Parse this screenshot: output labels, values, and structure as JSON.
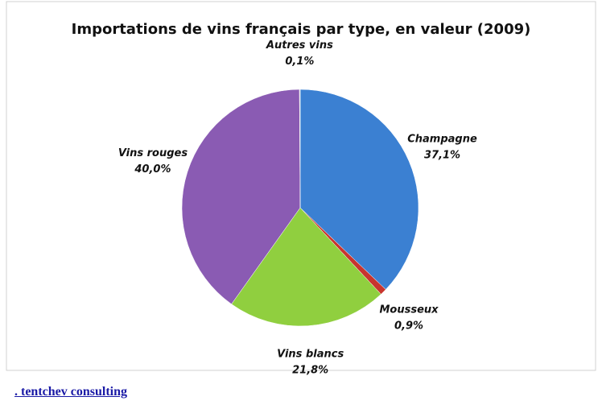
{
  "chart_data": {
    "type": "pie",
    "title": "Importations de vins français par type, en valeur (2009)",
    "categories": [
      "Champagne",
      "Mousseux",
      "Vins blancs",
      "Vins rouges",
      "Autres vins"
    ],
    "values": [
      37.1,
      0.9,
      21.8,
      40.0,
      0.1
    ],
    "value_labels": [
      "37,1%",
      "0,9%",
      "21,8%",
      "40,0%",
      "0,1%"
    ],
    "colors": [
      "#3b80d2",
      "#c8352e",
      "#90cf3f",
      "#8a5bb3",
      "#d9d9d9"
    ]
  },
  "link": {
    "text": ". tentchev consulting"
  }
}
